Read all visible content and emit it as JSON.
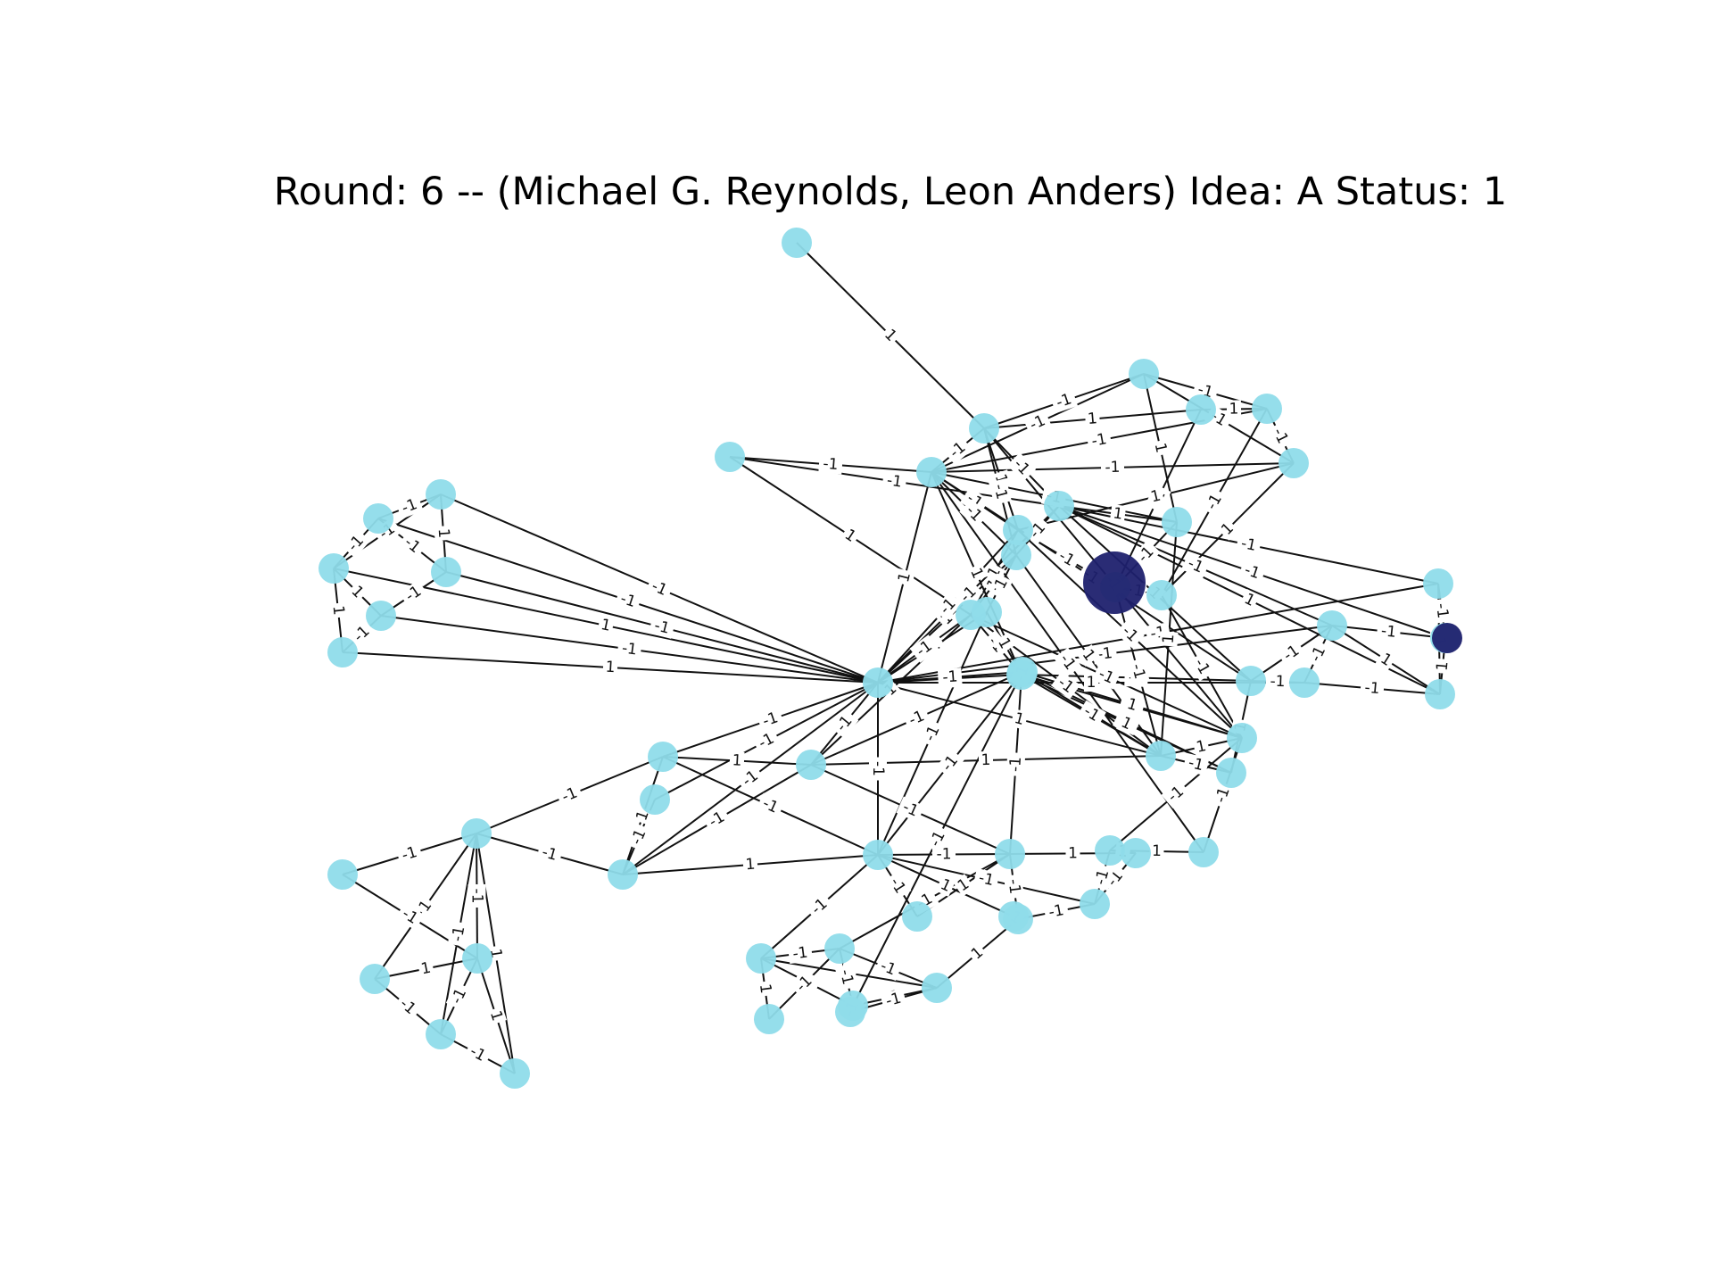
{
  "title": "Round: 6 -- (Michael G. Reynolds, Leon Anders) Idea: A Status: 1",
  "colors": {
    "node": "#8fdcea",
    "active_node": "#1f216e",
    "edge": "#111111",
    "background": "#ffffff"
  },
  "edge_label_values": [
    "1",
    "-1"
  ],
  "graph": {
    "directed": false,
    "node_count": 63
  }
}
